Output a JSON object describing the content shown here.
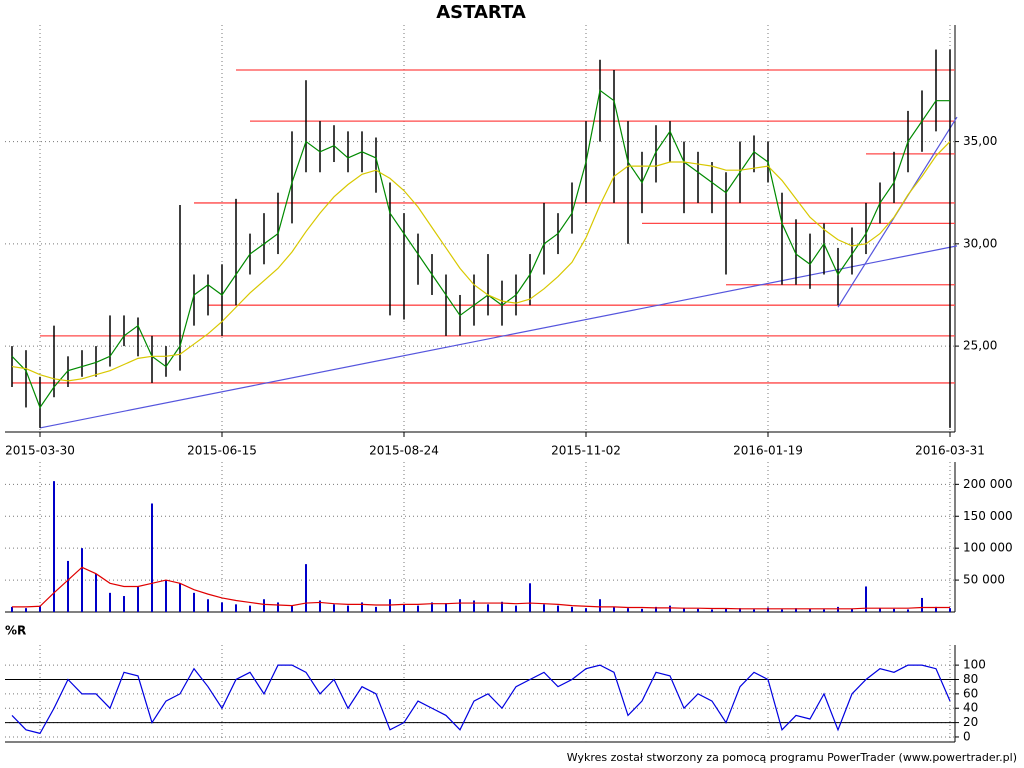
{
  "chart_data": [
    {
      "type": "range-bar",
      "title": "ASTARTA",
      "categories": [
        null,
        null,
        "2015-03-30",
        null,
        null,
        null,
        null,
        null,
        null,
        null,
        null,
        null,
        null,
        null,
        null,
        "2015-06-15",
        null,
        null,
        null,
        null,
        null,
        null,
        null,
        null,
        null,
        null,
        null,
        null,
        "2015-08-24",
        null,
        null,
        null,
        null,
        null,
        null,
        null,
        null,
        null,
        null,
        null,
        null,
        "2015-11-02",
        null,
        null,
        null,
        null,
        null,
        null,
        null,
        null,
        null,
        null,
        null,
        null,
        "2016-01-19",
        null,
        null,
        null,
        null,
        null,
        null,
        null,
        null,
        null,
        null,
        null,
        null,
        "2016-03-31"
      ],
      "high": [
        25.0,
        24.8,
        23.5,
        26.0,
        24.5,
        24.8,
        25.0,
        26.5,
        26.5,
        26.4,
        25.5,
        25.0,
        31.9,
        28.5,
        28.5,
        29.0,
        32.2,
        30.5,
        31.5,
        32.5,
        35.5,
        38.0,
        36.0,
        35.8,
        35.5,
        35.5,
        35.2,
        33.0,
        31.5,
        30.5,
        29.5,
        28.5,
        27.5,
        28.5,
        29.5,
        28.2,
        28.5,
        29.5,
        32.0,
        31.5,
        33.0,
        36.0,
        39.0,
        38.5,
        36.0,
        34.5,
        35.8,
        36.0,
        35.0,
        34.5,
        34.0,
        33.5,
        35.0,
        35.3,
        35.0,
        32.5,
        31.2,
        30.5,
        31.0,
        29.8,
        30.8,
        32.0,
        33.0,
        34.5,
        36.5,
        37.5,
        39.5,
        39.5
      ],
      "low": [
        23.0,
        22.0,
        21.0,
        22.5,
        23.0,
        23.5,
        23.5,
        24.0,
        25.0,
        24.5,
        23.2,
        23.5,
        23.8,
        26.0,
        26.5,
        25.5,
        27.0,
        28.5,
        29.0,
        29.5,
        31.0,
        33.5,
        33.5,
        34.0,
        33.5,
        33.5,
        32.5,
        26.5,
        26.3,
        28.0,
        27.5,
        25.5,
        25.5,
        26.0,
        26.5,
        26.0,
        26.5,
        27.0,
        28.5,
        29.5,
        30.5,
        32.0,
        35.0,
        32.0,
        30.0,
        31.5,
        33.0,
        34.0,
        31.5,
        32.0,
        31.5,
        28.5,
        32.0,
        33.5,
        33.0,
        28.0,
        28.0,
        27.8,
        28.5,
        27.0,
        28.5,
        29.5,
        31.0,
        32.0,
        33.5,
        34.5,
        35.5,
        21.0
      ],
      "bar_color": "#000000",
      "lines": [
        {
          "color": "#008a00",
          "values": [
            24.5,
            23.8,
            22.0,
            23.0,
            23.8,
            24.0,
            24.2,
            24.5,
            25.5,
            26.0,
            24.5,
            24.0,
            25.0,
            27.5,
            28.0,
            27.5,
            28.5,
            29.5,
            30.0,
            30.5,
            33.0,
            35.0,
            34.5,
            34.8,
            34.2,
            34.5,
            34.2,
            31.5,
            30.5,
            29.5,
            28.5,
            27.5,
            26.5,
            27.0,
            27.5,
            27.0,
            27.5,
            28.5,
            30.0,
            30.5,
            31.5,
            34.0,
            37.5,
            37.0,
            34.0,
            33.0,
            34.5,
            35.5,
            34.0,
            33.5,
            33.0,
            32.5,
            33.5,
            34.5,
            34.0,
            31.0,
            29.5,
            29.0,
            30.0,
            28.5,
            29.5,
            30.5,
            32.0,
            33.0,
            35.0,
            36.0,
            37.0,
            37.0
          ]
        },
        {
          "color": "#d8c800",
          "values": [
            24.0,
            23.9,
            23.6,
            23.4,
            23.3,
            23.4,
            23.6,
            23.8,
            24.1,
            24.4,
            24.5,
            24.5,
            24.6,
            25.1,
            25.6,
            26.2,
            26.9,
            27.6,
            28.2,
            28.8,
            29.6,
            30.6,
            31.5,
            32.3,
            32.9,
            33.4,
            33.6,
            33.2,
            32.6,
            31.8,
            30.8,
            29.8,
            28.8,
            28.0,
            27.5,
            27.2,
            27.1,
            27.3,
            27.8,
            28.4,
            29.1,
            30.3,
            31.9,
            33.3,
            33.8,
            33.8,
            33.8,
            34.0,
            34.0,
            33.9,
            33.8,
            33.6,
            33.6,
            33.7,
            33.8,
            33.1,
            32.2,
            31.3,
            30.7,
            30.2,
            29.9,
            30.0,
            30.5,
            31.3,
            32.4,
            33.3,
            34.3,
            35.0
          ]
        }
      ],
      "ylim": [
        20.8,
        40.7
      ],
      "yticks": [
        {
          "value": 25,
          "label": "25,00"
        },
        {
          "value": 30,
          "label": "30,00"
        },
        {
          "value": 35,
          "label": "35,00"
        }
      ],
      "grid": true,
      "level_color": "#ff4848",
      "levels": [
        {
          "value": 38.5,
          "start": 16
        },
        {
          "value": 36.0,
          "start": 17
        },
        {
          "value": 34.4,
          "start": 61
        },
        {
          "value": 32.0,
          "start": 13
        },
        {
          "value": 31.0,
          "start": 45
        },
        {
          "value": 28.0,
          "start": 51
        },
        {
          "value": 27.0,
          "start": 14
        },
        {
          "value": 25.5,
          "start": 2
        },
        {
          "value": 23.2,
          "start": 0
        }
      ],
      "trend_color": "#5555dd",
      "trendlines": [
        {
          "x": [
            2,
            67.5
          ],
          "y": [
            21.0,
            29.9
          ]
        },
        {
          "x": [
            59,
            67.5
          ],
          "y": [
            26.9,
            36.2
          ]
        }
      ]
    },
    {
      "type": "bar",
      "values": [
        8000,
        6000,
        10000,
        205000,
        80000,
        100000,
        60000,
        30000,
        25000,
        40000,
        170000,
        50000,
        45000,
        30000,
        20000,
        15000,
        12000,
        10000,
        20000,
        15000,
        10000,
        75000,
        18000,
        12000,
        10000,
        15000,
        8000,
        20000,
        12000,
        10000,
        15000,
        14000,
        20000,
        18000,
        12000,
        16000,
        10000,
        45000,
        12000,
        10000,
        8000,
        6000,
        20000,
        8000,
        6000,
        5000,
        8000,
        10000,
        6000,
        5000,
        4000,
        5000,
        6000,
        4000,
        7000,
        4000,
        6000,
        5000,
        4000,
        8000,
        5000,
        40000,
        6000,
        5000,
        4000,
        22000,
        8000,
        6000
      ],
      "color": "#0000c8",
      "lines": [
        {
          "color": "#e00000",
          "values": [
            8000,
            8000,
            9000,
            30000,
            50000,
            70000,
            60000,
            45000,
            40000,
            40000,
            45000,
            50000,
            45000,
            35000,
            28000,
            22000,
            18000,
            15000,
            12000,
            11000,
            10000,
            14000,
            15000,
            13000,
            12000,
            12000,
            11000,
            11000,
            12000,
            12000,
            13000,
            13000,
            14000,
            14000,
            14000,
            14000,
            13000,
            14000,
            13000,
            12000,
            10000,
            9000,
            8000,
            8000,
            7000,
            7000,
            6500,
            6500,
            6000,
            6000,
            5500,
            5500,
            5000,
            5000,
            5000,
            5000,
            5000,
            5000,
            5000,
            5000,
            5000,
            6000,
            6000,
            6000,
            6000,
            7000,
            7000,
            7000
          ]
        }
      ],
      "ylim": [
        0,
        235000
      ],
      "yticks": [
        {
          "value": 50000,
          "label": "50 000"
        },
        {
          "value": 100000,
          "label": "100 000"
        },
        {
          "value": 150000,
          "label": "150 000"
        },
        {
          "value": 200000,
          "label": "200 000"
        }
      ],
      "grid": true
    },
    {
      "type": "line",
      "title": "%R",
      "values": [
        30,
        10,
        5,
        40,
        80,
        60,
        60,
        40,
        90,
        85,
        20,
        50,
        60,
        95,
        70,
        40,
        80,
        90,
        60,
        100,
        100,
        90,
        60,
        80,
        40,
        70,
        60,
        10,
        20,
        50,
        40,
        30,
        10,
        50,
        60,
        40,
        70,
        80,
        90,
        70,
        80,
        95,
        100,
        90,
        30,
        50,
        90,
        85,
        40,
        60,
        50,
        20,
        70,
        90,
        80,
        10,
        30,
        25,
        60,
        10,
        60,
        80,
        95,
        90,
        100,
        100,
        95,
        50
      ],
      "color": "#0000e0",
      "ylim": [
        -7,
        128
      ],
      "yticks": [
        0,
        20,
        40,
        60,
        80,
        100
      ],
      "reference_lines": [
        20,
        80
      ],
      "grid": true
    }
  ],
  "footer": "Wykres został stworzony za pomocą programu PowerTrader (www.powertrader.pl)"
}
